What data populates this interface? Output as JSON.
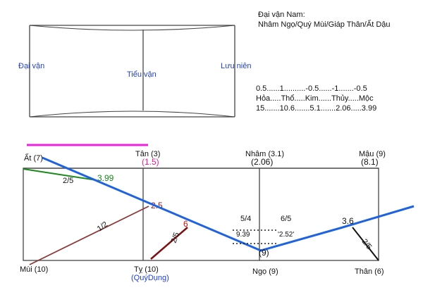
{
  "header": {
    "line1": "Đại vận Nam:",
    "line2": "Nhâm Ngọ/Quý Mùi/Giáp Thân/Ất Dậu"
  },
  "top_box": {
    "left": "Đại vận",
    "center": "Tiểu vận",
    "right": "Lưu niên"
  },
  "elements": {
    "values_row": "0.5......1..........-0.5......-1.......-0.5",
    "names_row": "Hỏa.....Thổ.....Kim......Thủy.....Mộc",
    "scores_row": "15.......10.6.......5.1.......2.06.....3.99"
  },
  "pillars_top": [
    {
      "name": "Ất (7)",
      "value": ""
    },
    {
      "name": "Tân (3)",
      "value": "(1.5)"
    },
    {
      "name": "Nhâm (3.1)",
      "value": "(2.06)"
    },
    {
      "name": "Mậu (9)",
      "value": "(8.1)"
    }
  ],
  "pillars_bottom": [
    {
      "name": "Mùi (10)",
      "sub": ""
    },
    {
      "name": "Tỵ (10)",
      "sub": "(QuýDụng)"
    },
    {
      "name": "Ngọ (9)",
      "sub": ""
    },
    {
      "name": "Thân (6)",
      "sub": ""
    }
  ],
  "annotations": {
    "green_ratio": "2/5",
    "green_value": "3.99",
    "brown_ratio": "1/2",
    "brown_value": "2.5",
    "dark_red_ratio": "2/5",
    "red_value": "6",
    "ratio_left": "5/4",
    "ratio_right": "6/5",
    "dotted_left": "9.39",
    "dotted_right": "'2.52'",
    "bottom_value": "(9)",
    "right_value": "3.6",
    "right_ratio": "2/5"
  },
  "colors": {
    "blue_line": "#1f63e0",
    "green_line": "#1a8a1a",
    "brown_line": "#8b3a3a",
    "magenta_bar": "#ee22dd",
    "pink_text": "#e0209a",
    "label_blue": "#1f3fd0"
  }
}
